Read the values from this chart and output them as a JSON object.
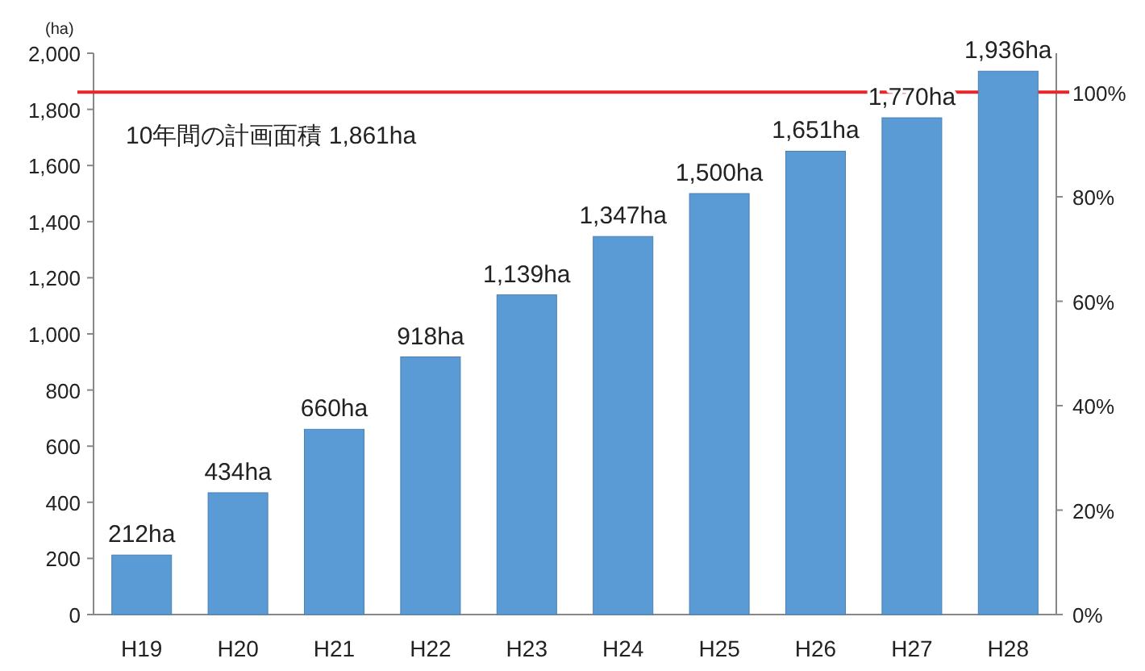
{
  "chart_data": {
    "type": "bar",
    "ylabel": "(ha)",
    "color": "#5b9bd5",
    "categories": [
      "H19",
      "H20",
      "H21",
      "H22",
      "H23",
      "H24",
      "H25",
      "H26",
      "H27",
      "H28"
    ],
    "values": [
      212,
      434,
      660,
      918,
      1139,
      1347,
      1500,
      1651,
      1770,
      1936
    ],
    "value_labels": [
      "212ha",
      "434ha",
      "660ha",
      "918ha",
      "1,139ha",
      "1,347ha",
      "1,500ha",
      "1,651ha",
      "1,770ha",
      "1,936ha"
    ],
    "ylim": [
      0,
      2000
    ],
    "yticks": [
      0,
      200,
      400,
      600,
      800,
      {
        "value": 1000,
        "label": "1,000"
      },
      {
        "value": 1200,
        "label": "1,200"
      },
      {
        "value": 1400,
        "label": "1,400"
      },
      {
        "value": 1600,
        "label": "1,600"
      },
      {
        "value": 1800,
        "label": "1,800"
      },
      {
        "value": 2000,
        "label": "2,000"
      }
    ],
    "y2lim": [
      0,
      107.5
    ],
    "y2ticks": [
      {
        "value": 0,
        "label": "0%"
      },
      {
        "value": 20,
        "label": "20%"
      },
      {
        "value": 40,
        "label": "40%"
      },
      {
        "value": 60,
        "label": "60%"
      },
      {
        "value": 80,
        "label": "80%"
      },
      {
        "value": 100,
        "label": "100%"
      }
    ],
    "ref_lines": [
      {
        "axis": "y",
        "value": 1861,
        "label": "10年間の計画面積 1,861ha",
        "color": "#e8262a"
      }
    ]
  }
}
